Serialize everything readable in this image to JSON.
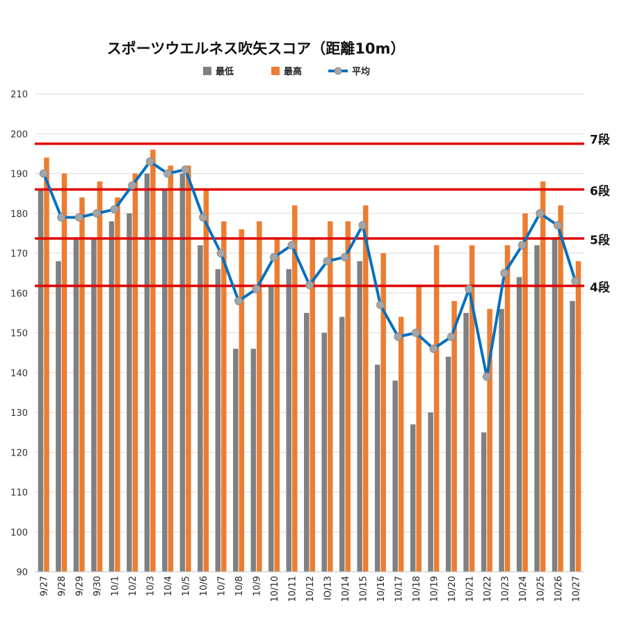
{
  "chart_data": {
    "type": "bar",
    "title": "スポーツウエルネス吹矢スコア（距離10m）",
    "xlabel": "",
    "ylabel": "",
    "ylim": [
      90,
      210
    ],
    "yticks": [
      90,
      100,
      110,
      120,
      130,
      140,
      150,
      160,
      170,
      180,
      190,
      200,
      210
    ],
    "grid": true,
    "legend_position": "top",
    "categories": [
      "9/27",
      "9/28",
      "9/29",
      "9/30",
      "10/1",
      "10/2",
      "10/3",
      "10/4",
      "10/5",
      "10/6",
      "10/7",
      "10/8",
      "10/9",
      "10/10",
      "10/11",
      "10/12",
      "IO/13",
      "10/14",
      "10/15",
      "10/16",
      "10/17",
      "10/18",
      "10/19",
      "10/20",
      "10/21",
      "10/22",
      "10/23",
      "10/24",
      "10/25",
      "10/26",
      "10/27"
    ],
    "series": [
      {
        "name": "最低",
        "type": "bar",
        "color": "#808080",
        "values": [
          186,
          168,
          174,
          174,
          178,
          180,
          190,
          186,
          190,
          172,
          166,
          146,
          146,
          162,
          166,
          155,
          150,
          154,
          168,
          142,
          138,
          127,
          130,
          144,
          155,
          125,
          156,
          164,
          172,
          174,
          158
        ]
      },
      {
        "name": "最高",
        "type": "bar",
        "color": "#ED7D31",
        "values": [
          194,
          190,
          184,
          188,
          184,
          190,
          196,
          192,
          192,
          186,
          178,
          176,
          178,
          174,
          182,
          174,
          178,
          178,
          182,
          170,
          154,
          162,
          172,
          158,
          172,
          156,
          172,
          180,
          188,
          182,
          168
        ]
      },
      {
        "name": "平均",
        "type": "line",
        "color": "#0070C0",
        "marker_color": "#A5A5A5",
        "values": [
          190,
          179,
          179,
          180,
          181,
          187,
          193,
          190,
          191,
          179,
          170,
          158,
          161,
          169,
          172,
          162,
          168,
          169,
          177,
          157,
          149,
          150,
          146,
          149,
          161,
          139,
          165,
          172,
          180,
          177,
          163
        ]
      }
    ],
    "reference_lines": [
      {
        "label": "7段",
        "value": 197.5,
        "color": "#E00000"
      },
      {
        "label": "6段",
        "value": 186,
        "color": "#E00000"
      },
      {
        "label": "5段",
        "value": 173.7,
        "color": "#E00000"
      },
      {
        "label": "4段",
        "value": 161.8,
        "color": "#E00000"
      }
    ]
  }
}
